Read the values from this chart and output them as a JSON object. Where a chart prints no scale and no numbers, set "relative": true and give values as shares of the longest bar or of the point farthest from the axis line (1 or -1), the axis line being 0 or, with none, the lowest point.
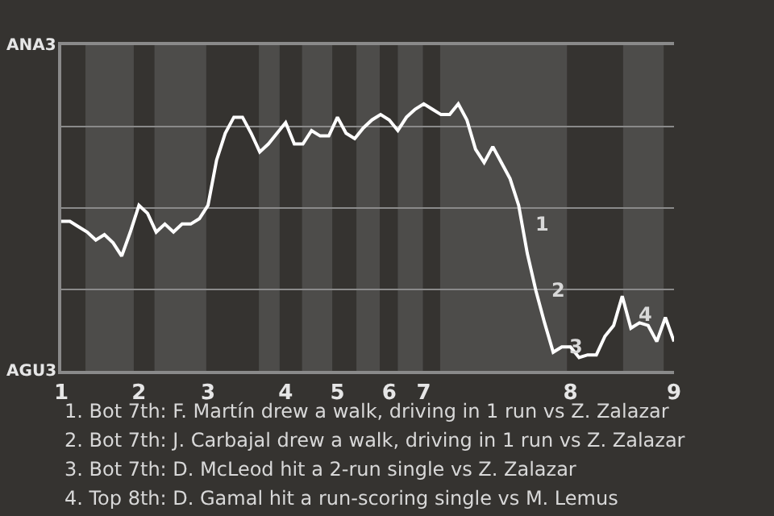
{
  "chart_data": {
    "type": "line",
    "relative": true,
    "categories": [
      "1",
      null,
      null,
      null,
      null,
      null,
      null,
      null,
      null,
      "2",
      null,
      null,
      null,
      null,
      null,
      null,
      null,
      "3",
      null,
      null,
      null,
      null,
      null,
      null,
      null,
      null,
      "4",
      null,
      null,
      null,
      null,
      null,
      "5",
      null,
      null,
      null,
      null,
      null,
      "6",
      null,
      null,
      null,
      "7",
      null,
      null,
      null,
      null,
      null,
      null,
      null,
      null,
      null,
      null,
      null,
      null,
      null,
      null,
      null,
      null,
      "8",
      null,
      null,
      null,
      null,
      null,
      null,
      null,
      null,
      null,
      null,
      null,
      "9"
    ],
    "series": [
      {
        "color": "#ffffff",
        "values": [
          0.56,
          0.56,
          0.54,
          0.52,
          0.49,
          0.51,
          0.48,
          0.43,
          0.52,
          0.62,
          0.59,
          0.52,
          0.55,
          0.52,
          0.55,
          0.55,
          0.57,
          0.62,
          0.79,
          0.89,
          0.95,
          0.95,
          0.89,
          0.82,
          0.85,
          0.89,
          0.93,
          0.85,
          0.85,
          0.9,
          0.88,
          0.88,
          0.95,
          0.89,
          0.87,
          0.91,
          0.94,
          0.96,
          0.94,
          0.9,
          0.95,
          0.98,
          1.0,
          0.98,
          0.96,
          0.96,
          1.0,
          0.94,
          0.83,
          0.78,
          0.84,
          0.78,
          0.72,
          0.62,
          0.44,
          0.3,
          0.18,
          0.07,
          0.09,
          0.09,
          0.05,
          0.06,
          0.06,
          0.13,
          0.17,
          0.28,
          0.16,
          0.18,
          0.17,
          0.11,
          0.2,
          0.11
        ]
      }
    ],
    "grid": "y",
    "marker": "none",
    "line_style": "solid",
    "annotations": [
      "ANA3",
      "AGU3",
      "1",
      "2",
      "3",
      "4",
      "1. Bot 7th: F. Martín drew a walk, driving in 1 run vs Z. Zalazar",
      "2. Bot 7th: J. Carbajal drew a walk, driving in 1 run vs Z. Zalazar",
      "3. Bot 7th: D. McLeod hit a 2-run single vs Z. Zalazar",
      "4. Top 8th: D. Gamal hit a run-scoring single vs M. Lemus"
    ]
  }
}
